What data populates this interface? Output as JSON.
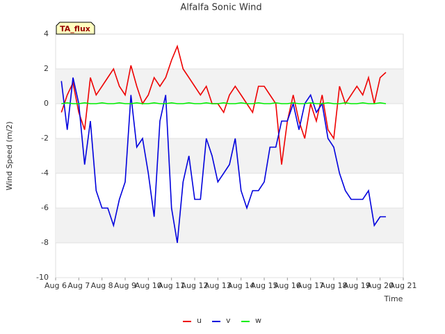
{
  "chart_data": {
    "type": "line",
    "title": "Alfalfa Sonic Wind",
    "x_label": "Time",
    "y_label": "Wind Speed (m/2)",
    "annotation": "TA_flux",
    "x": [
      6.25,
      6.5,
      6.75,
      7,
      7.25,
      7.5,
      7.75,
      8,
      8.25,
      8.5,
      8.75,
      9,
      9.25,
      9.5,
      9.75,
      10,
      10.25,
      10.5,
      10.75,
      11,
      11.25,
      11.5,
      11.75,
      12,
      12.25,
      12.5,
      12.75,
      13,
      13.25,
      13.5,
      13.75,
      14,
      14.25,
      14.5,
      14.75,
      15,
      15.25,
      15.5,
      15.75,
      16,
      16.25,
      16.5,
      16.75,
      17,
      17.25,
      17.5,
      17.75,
      18,
      18.25,
      18.5,
      18.75,
      19,
      19.25,
      19.5,
      19.75,
      20,
      20.25
    ],
    "series": [
      {
        "name": "u",
        "color": "#ee0000",
        "values": [
          -0.5,
          0.5,
          1.2,
          -0.5,
          -1.5,
          1.5,
          0.5,
          1,
          1.5,
          2,
          1,
          0.5,
          2.2,
          1,
          0,
          0.5,
          1.5,
          1,
          1.5,
          2.5,
          3.3,
          2,
          1.5,
          1,
          0.5,
          1,
          0,
          0,
          -0.5,
          0.5,
          1,
          0.5,
          0,
          -0.5,
          1,
          1,
          0.5,
          0,
          -3.5,
          -1,
          0.5,
          -1,
          -2,
          0,
          -1,
          0.5,
          -1.5,
          -2,
          1,
          0,
          0.5,
          1,
          0.5,
          1.5,
          0,
          1.5,
          1.8
        ]
      },
      {
        "name": "v",
        "color": "#0000dd",
        "values": [
          1.3,
          -1.5,
          1.5,
          0,
          -3.5,
          -1,
          -5,
          -6,
          -6,
          -7,
          -5.5,
          -4.5,
          0.5,
          -2.5,
          -2,
          -4,
          -6.5,
          -1,
          0.5,
          -6,
          -8,
          -4.5,
          -3,
          -5.5,
          -5.5,
          -2,
          -3,
          -4.5,
          -4,
          -3.5,
          -2,
          -5,
          -6,
          -5,
          -5,
          -4.5,
          -2.5,
          -2.5,
          -1,
          -1,
          0,
          -1.5,
          0,
          0.5,
          -0.5,
          0,
          -2,
          -2.5,
          -4,
          -5,
          -5.5,
          -5.5,
          -5.5,
          -5,
          -7,
          -6.5,
          -6.5
        ]
      },
      {
        "name": "w",
        "color": "#00ee00",
        "values": [
          0,
          0.05,
          0,
          0,
          0.05,
          0,
          0,
          0.05,
          0,
          0,
          0.05,
          0,
          0,
          0.05,
          0,
          0,
          0.05,
          0,
          0,
          0.05,
          0,
          0,
          0.05,
          0,
          0,
          0.05,
          0,
          0,
          0.05,
          0,
          0,
          0.05,
          0,
          0,
          0.05,
          0,
          0,
          0.05,
          0,
          0,
          0.05,
          0,
          0,
          0.05,
          0,
          0,
          0.05,
          0,
          0,
          0.05,
          0,
          0,
          0.05,
          0,
          0,
          0.05,
          0
        ]
      }
    ],
    "xlim": [
      6,
      21
    ],
    "xticks": [
      {
        "value": 6,
        "label": "Aug 6"
      },
      {
        "value": 7,
        "label": "Aug 7"
      },
      {
        "value": 8,
        "label": "Aug 8"
      },
      {
        "value": 9,
        "label": "Aug 9"
      },
      {
        "value": 10,
        "label": "Aug 10"
      },
      {
        "value": 11,
        "label": "Aug 11"
      },
      {
        "value": 12,
        "label": "Aug 12"
      },
      {
        "value": 13,
        "label": "Aug 13"
      },
      {
        "value": 14,
        "label": "Aug 14"
      },
      {
        "value": 15,
        "label": "Aug 15"
      },
      {
        "value": 16,
        "label": "Aug 16"
      },
      {
        "value": 17,
        "label": "Aug 17"
      },
      {
        "value": 18,
        "label": "Aug 18"
      },
      {
        "value": 19,
        "label": "Aug 19"
      },
      {
        "value": 20,
        "label": "Aug 20"
      },
      {
        "value": 21,
        "label": "Aug 21"
      }
    ],
    "ylim": [
      -10,
      4
    ],
    "yticks": [
      4,
      2,
      0,
      -2,
      -4,
      -6,
      -8,
      -10
    ],
    "grid": true
  }
}
